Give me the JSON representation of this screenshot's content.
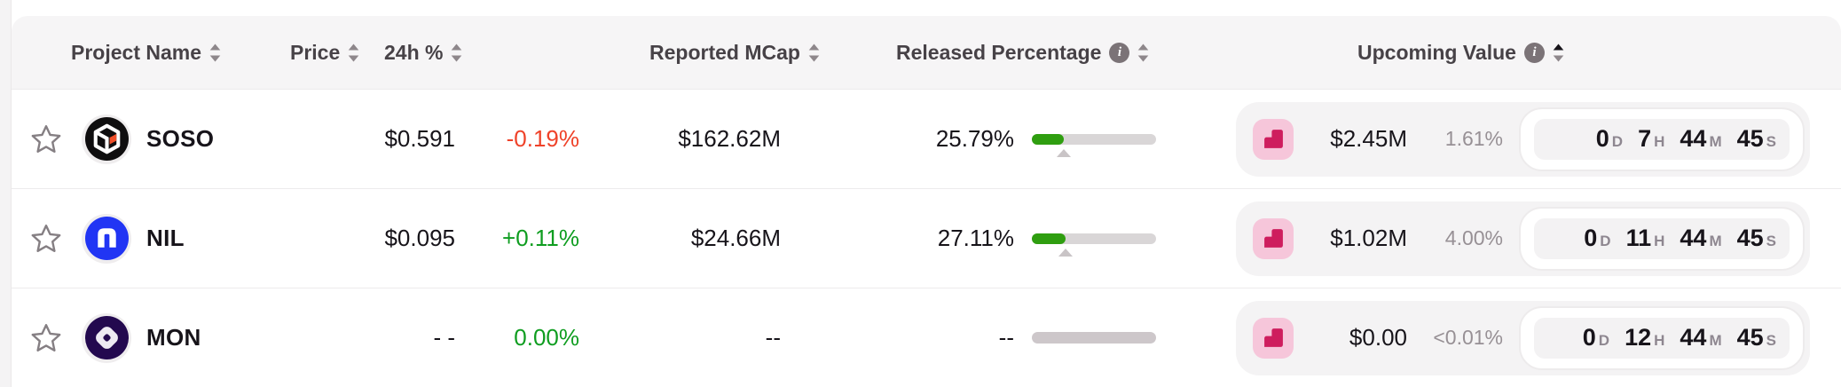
{
  "header": {
    "columns": [
      {
        "label": "Project Name",
        "sortable": true
      },
      {
        "label": "Price",
        "sortable": true
      },
      {
        "label": "24h %",
        "sortable": true
      },
      {
        "label": "Reported MCap",
        "sortable": true
      },
      {
        "label": "Released Percentage",
        "sortable": true,
        "info": true
      },
      {
        "label": "Upcoming Value",
        "sortable": true,
        "info": true,
        "sort": "asc"
      }
    ]
  },
  "rows": [
    {
      "symbol": "SOSO",
      "price": "$0.591",
      "change_24h": "-0.19%",
      "change_dir": "down",
      "mcap": "$162.62M",
      "released_pct": "25.79%",
      "released_fill": 26,
      "upcoming_value": "$2.45M",
      "upcoming_pct": "1.61%",
      "countdown": {
        "d": "0",
        "h": "7",
        "m": "44",
        "s": "45"
      }
    },
    {
      "symbol": "NIL",
      "price": "$0.095",
      "change_24h": "+0.11%",
      "change_dir": "up",
      "mcap": "$24.66M",
      "released_pct": "27.11%",
      "released_fill": 27,
      "upcoming_value": "$1.02M",
      "upcoming_pct": "4.00%",
      "countdown": {
        "d": "0",
        "h": "11",
        "m": "44",
        "s": "45"
      }
    },
    {
      "symbol": "MON",
      "price": "- -",
      "change_24h": "0.00%",
      "change_dir": "up",
      "mcap": "--",
      "released_pct": "--",
      "released_fill": 0,
      "upcoming_value": "$0.00",
      "upcoming_pct": "<0.01%",
      "countdown": {
        "d": "0",
        "h": "12",
        "m": "44",
        "s": "45"
      }
    }
  ],
  "countdown_units": {
    "d": "D",
    "h": "H",
    "m": "M",
    "s": "S"
  },
  "icons": {
    "favorite": "star-outline-icon",
    "sort": "sort-arrows-icon",
    "info": "info-circle-icon",
    "unlock_event": "unlock-calendar-icon",
    "logos": [
      "soso-token-logo",
      "nil-token-logo",
      "mon-token-logo"
    ]
  },
  "colors": {
    "positive": "#0f9d20",
    "negative": "#ef4229",
    "progress_fill": "#2f9e10",
    "progress_track": "#d9d6d7",
    "unlock_icon": "#ce1d5e",
    "unlock_icon_bg": "#f6c6da",
    "header_bg": "#f6f5f6",
    "pill_bg": "#f3f2f3",
    "secondary_text": "#979095"
  }
}
